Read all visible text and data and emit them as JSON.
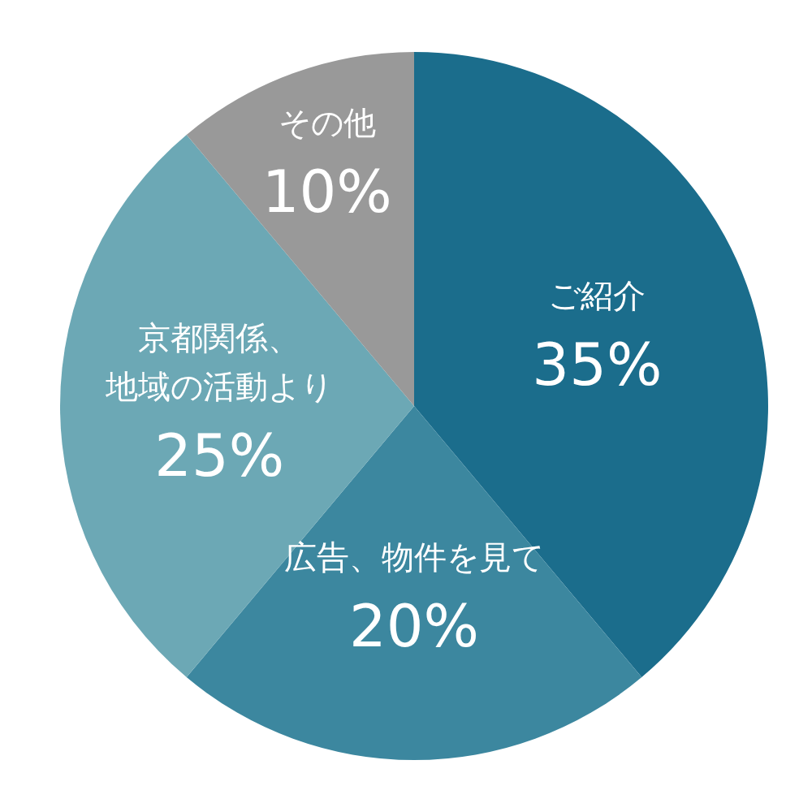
{
  "chart_data": {
    "type": "pie",
    "categories": [
      "ご紹介",
      "広告、物件を見て",
      "京都関係、地域の活動より",
      "その他"
    ],
    "values": [
      35,
      20,
      25,
      10
    ],
    "colors": [
      "#1b6d8c",
      "#3c879f",
      "#6ca8b5",
      "#999999"
    ],
    "value_labels": [
      "35%",
      "20%",
      "25%",
      "10%"
    ]
  }
}
